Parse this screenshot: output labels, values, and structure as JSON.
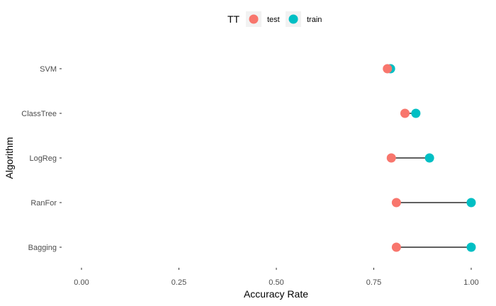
{
  "chart_data": {
    "type": "dumbbell",
    "xlabel": "Accuracy Rate",
    "ylabel": "Algorithm",
    "xlim": [
      0,
      1
    ],
    "x_ticks": [
      0,
      0.25,
      0.5,
      0.75,
      1
    ],
    "x_tick_labels": [
      "0.00",
      "0.25",
      "0.50",
      "0.75",
      "1.00"
    ],
    "categories": [
      "SVM",
      "ClassTree",
      "LogReg",
      "RanFor",
      "Bagging"
    ],
    "legend": {
      "title": "TT",
      "placement": "top",
      "entries": [
        {
          "name": "test",
          "color": "#F8766D"
        },
        {
          "name": "train",
          "color": "#00BFC4"
        }
      ]
    },
    "series": [
      {
        "name": "test",
        "color": "#F8766D",
        "values": [
          0.785,
          0.83,
          0.795,
          0.808,
          0.808
        ]
      },
      {
        "name": "train",
        "color": "#00BFC4",
        "values": [
          0.793,
          0.858,
          0.893,
          1.0,
          1.0
        ]
      }
    ],
    "grid": false
  }
}
